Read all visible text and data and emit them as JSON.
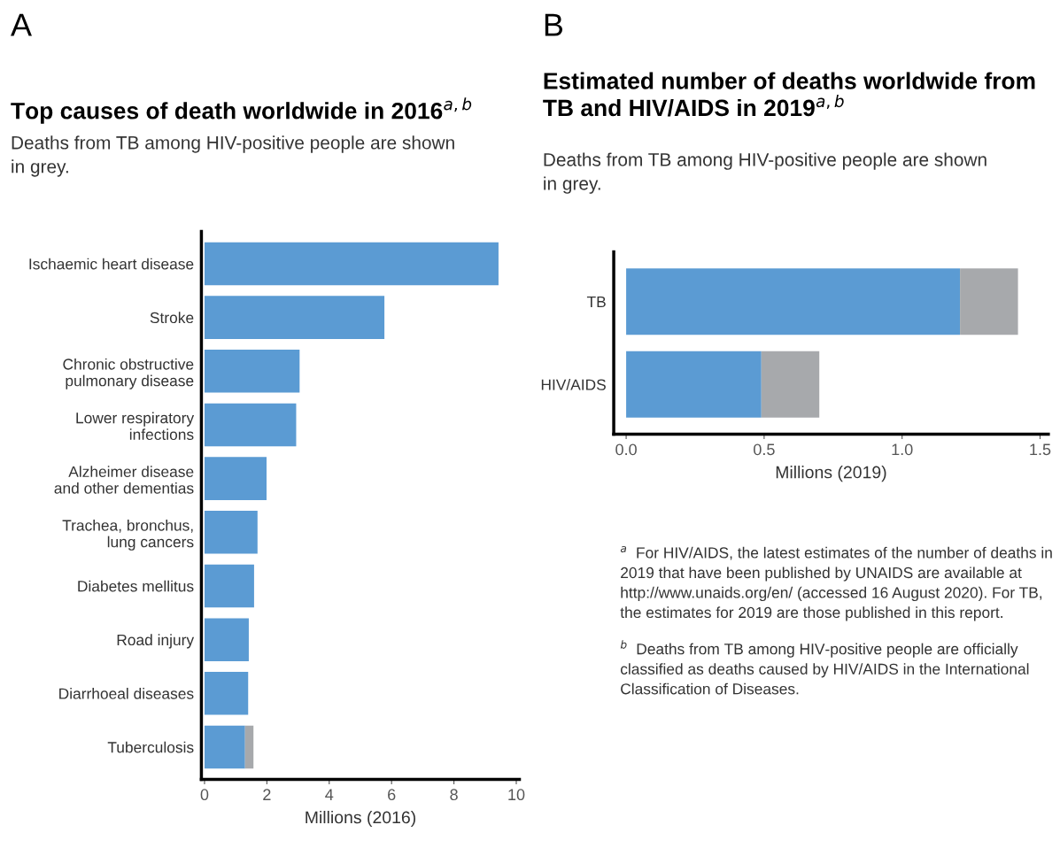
{
  "chart_data": [
    {
      "type": "bar",
      "orientation": "horizontal",
      "stacked": true,
      "title": "Top causes of death worldwide in 2016$^{a,b}$",
      "subtitle": "Deaths from TB among HIV-positive people are shown\nin grey.",
      "xlabel": "Millions (2016)",
      "categories": [
        "Ischaemic heart disease",
        "Stroke",
        "Chronic obstructive\npulmonary disease",
        "Lower respiratory\ninfections",
        "Alzheimer disease\nand other dementias",
        "Trachea, bronchus,\nlung cancers",
        "Diabetes mellitus",
        "Road injury",
        "Diarrhoeal diseases",
        "Tuberculosis"
      ],
      "series": [
        {
          "color": "#5b9bd3",
          "values": [
            9.43,
            5.77,
            3.05,
            2.94,
            1.99,
            1.7,
            1.59,
            1.42,
            1.4,
            1.3
          ]
        },
        {
          "color": "#a7a9ac",
          "values": [
            null,
            null,
            null,
            null,
            null,
            null,
            null,
            null,
            null,
            0.27
          ]
        }
      ],
      "xlim": [
        -0.1,
        10.1
      ],
      "xticks": [
        0,
        2,
        4,
        6,
        8,
        10
      ],
      "grid": false,
      "legend": false,
      "annotations": [
        "A"
      ]
    },
    {
      "type": "bar",
      "orientation": "horizontal",
      "stacked": true,
      "title": "Estimated number of deaths worldwide from\nTB and HIV/AIDS in 2019$^{a,b}$",
      "subtitle": "Deaths from TB among HIV-positive people are shown\nin grey.",
      "xlabel": "Millions (2019)",
      "categories": [
        "TB",
        "HIV/AIDS"
      ],
      "series": [
        {
          "color": "#5b9bd3",
          "values": [
            1.21,
            0.49
          ]
        },
        {
          "color": "#a7a9ac",
          "values": [
            0.21,
            0.21
          ]
        }
      ],
      "xlim": [
        -0.045,
        1.53
      ],
      "xticks": [
        {
          "value": 0,
          "label": "0.0"
        },
        {
          "value": 0.5,
          "label": "0.5"
        },
        {
          "value": 1,
          "label": "1.0"
        },
        {
          "value": 1.5,
          "label": "1.5"
        }
      ],
      "grid": false,
      "legend": false,
      "annotations": [
        "B",
        "$^{a}$  For HIV/AIDS, the latest estimates of the number of deaths in 2019 that have been published by UNAIDS are available at http://www.unaids.org/en/ (accessed 16 August 2020). For TB, the estimates for 2019 are those published in this report.",
        "$^{b}$  Deaths from TB among HIV-positive people are officially classified as deaths caused by HIV/AIDS in the International Classification of Diseases."
      ]
    }
  ]
}
